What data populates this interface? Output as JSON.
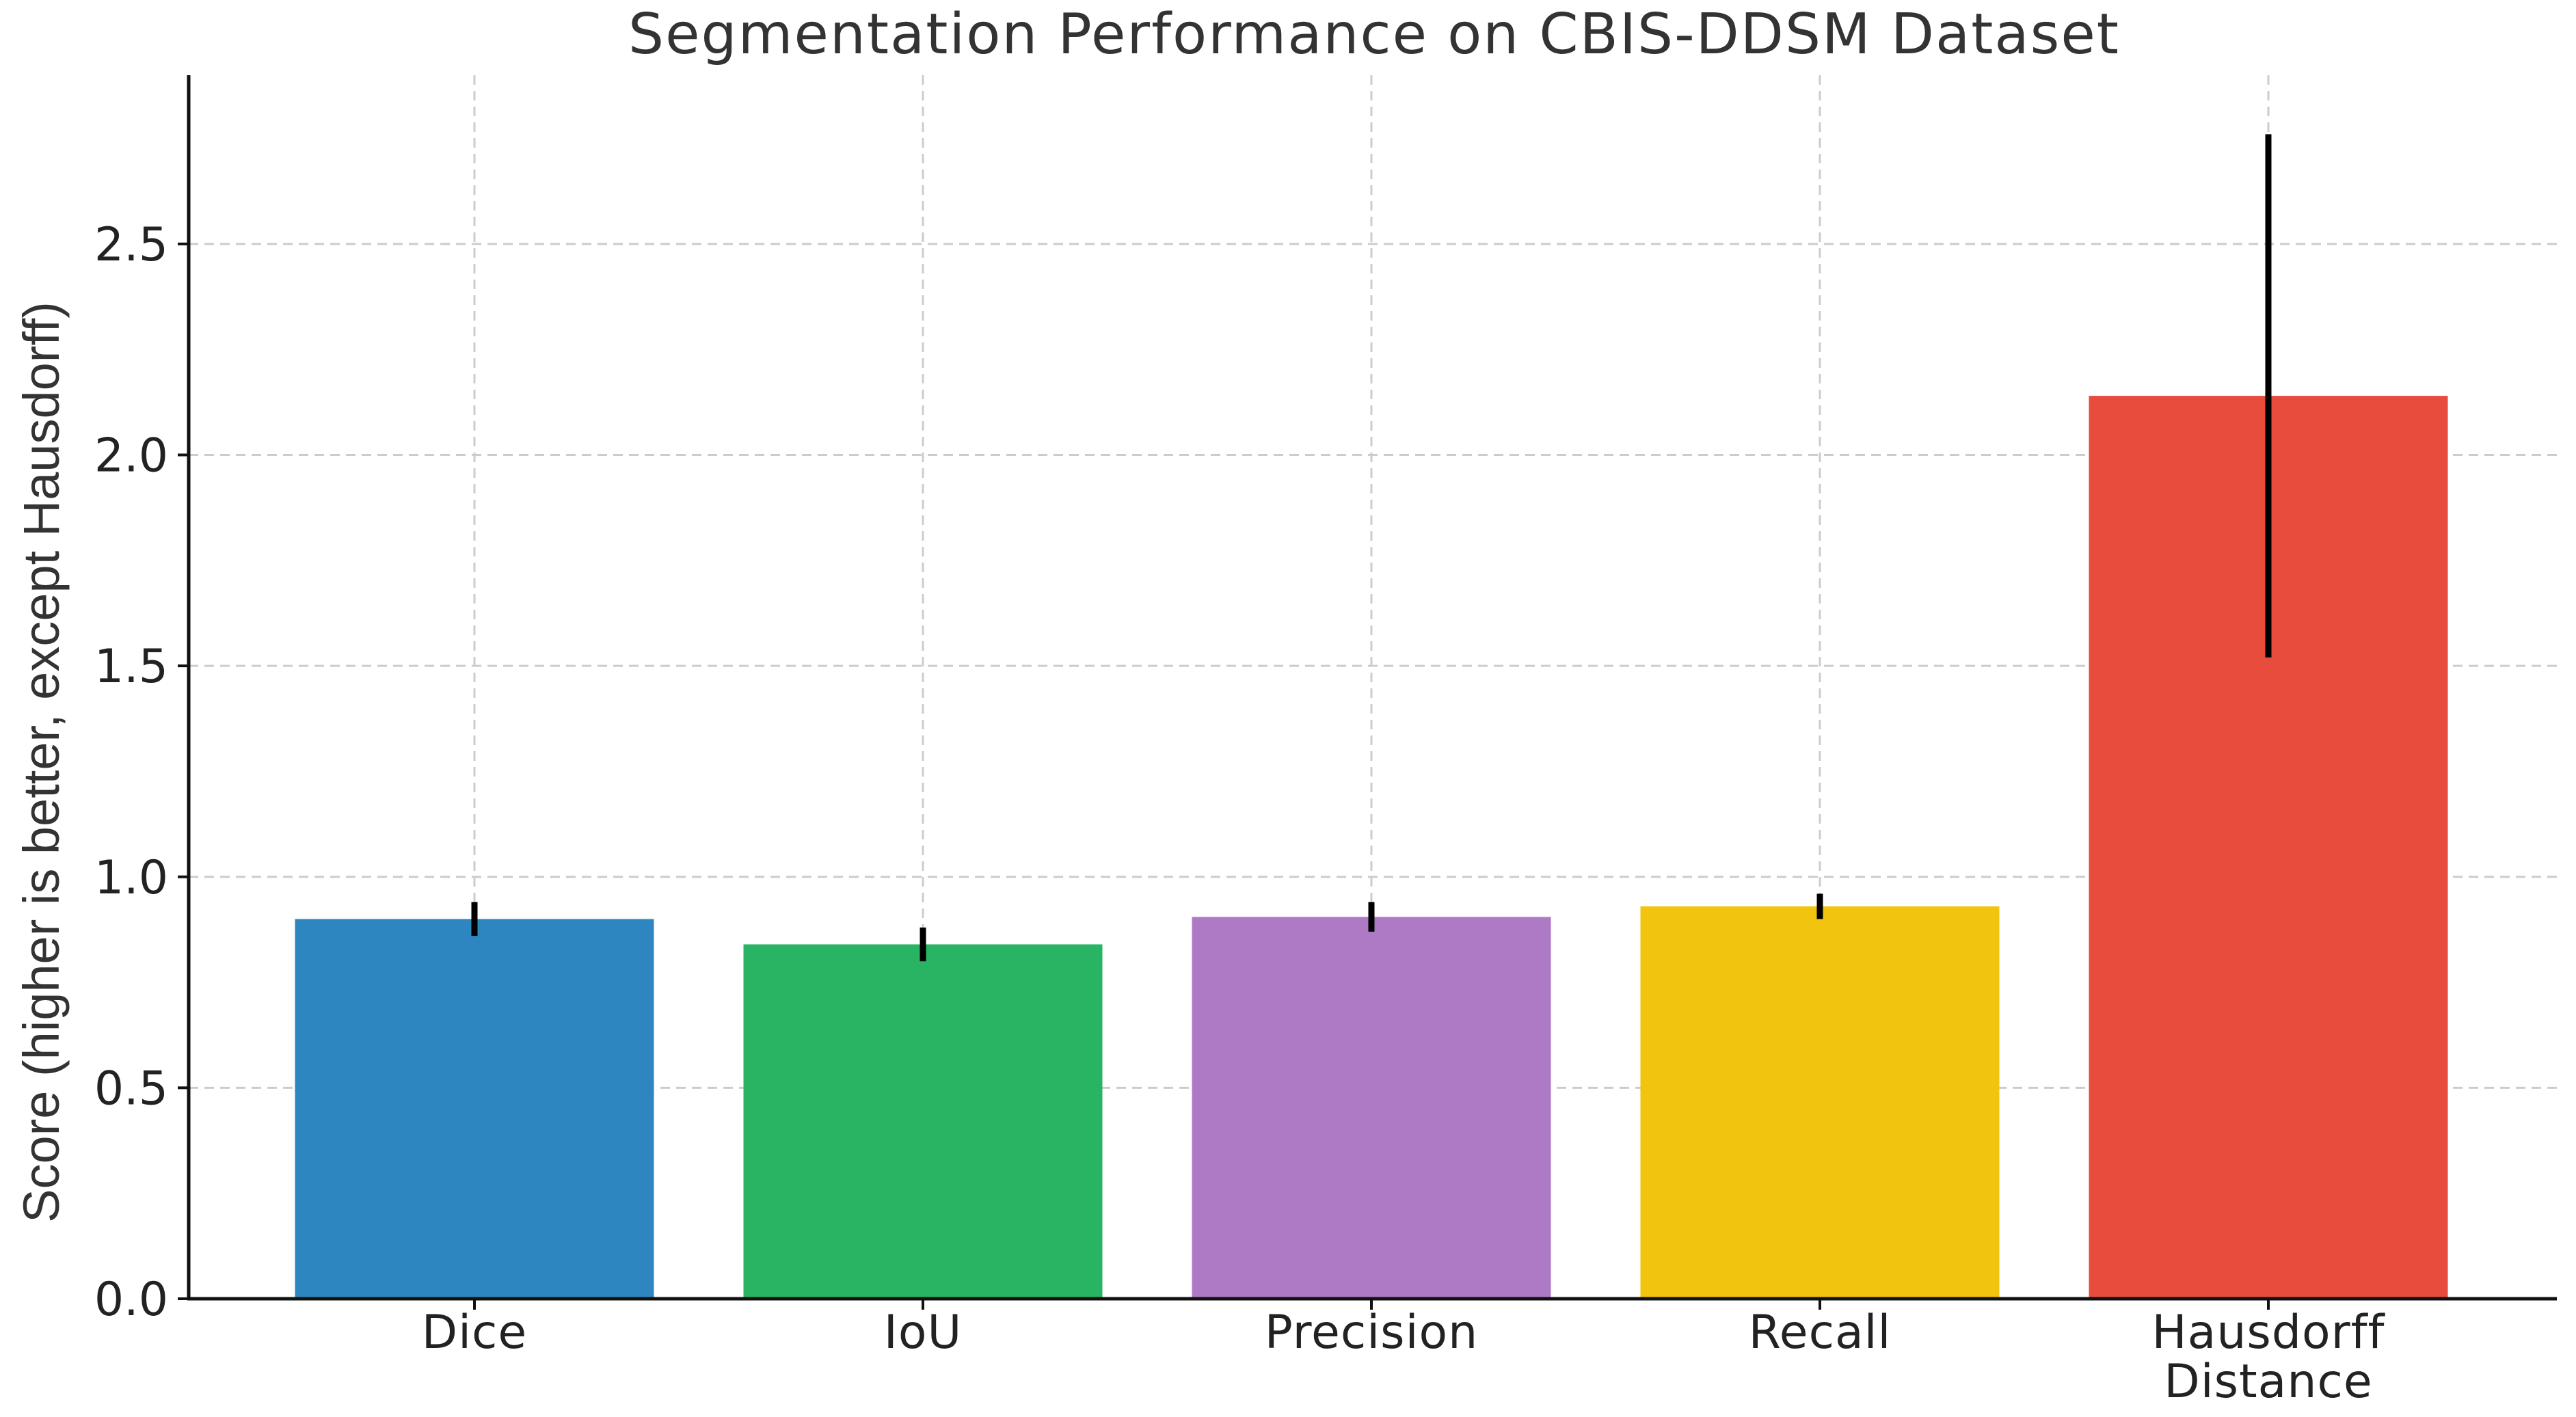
{
  "chart_data": {
    "type": "bar",
    "title": "Segmentation Performance on CBIS-DDSM Dataset",
    "xlabel": "",
    "ylabel": "Score (higher is better, except Hausdorff)",
    "categories": [
      "Dice",
      "IoU",
      "Precision",
      "Recall",
      "Hausdorff Distance"
    ],
    "category_lines": [
      [
        "Dice"
      ],
      [
        "IoU"
      ],
      [
        "Precision"
      ],
      [
        "Recall"
      ],
      [
        "Hausdorff",
        "Distance"
      ]
    ],
    "values": [
      0.9,
      0.84,
      0.905,
      0.93,
      2.14
    ],
    "errors": [
      0.04,
      0.04,
      0.035,
      0.03,
      0.62
    ],
    "colors": [
      "#2e86c1",
      "#28b463",
      "#af7ac5",
      "#f1c40f",
      "#e74c3c"
    ],
    "ylim": [
      0,
      2.9
    ],
    "yticks": [
      0.0,
      0.5,
      1.0,
      1.5,
      2.0,
      2.5
    ],
    "ytick_labels": [
      "0.0",
      "0.5",
      "1.0",
      "1.5",
      "2.0",
      "2.5"
    ],
    "grid": true
  }
}
